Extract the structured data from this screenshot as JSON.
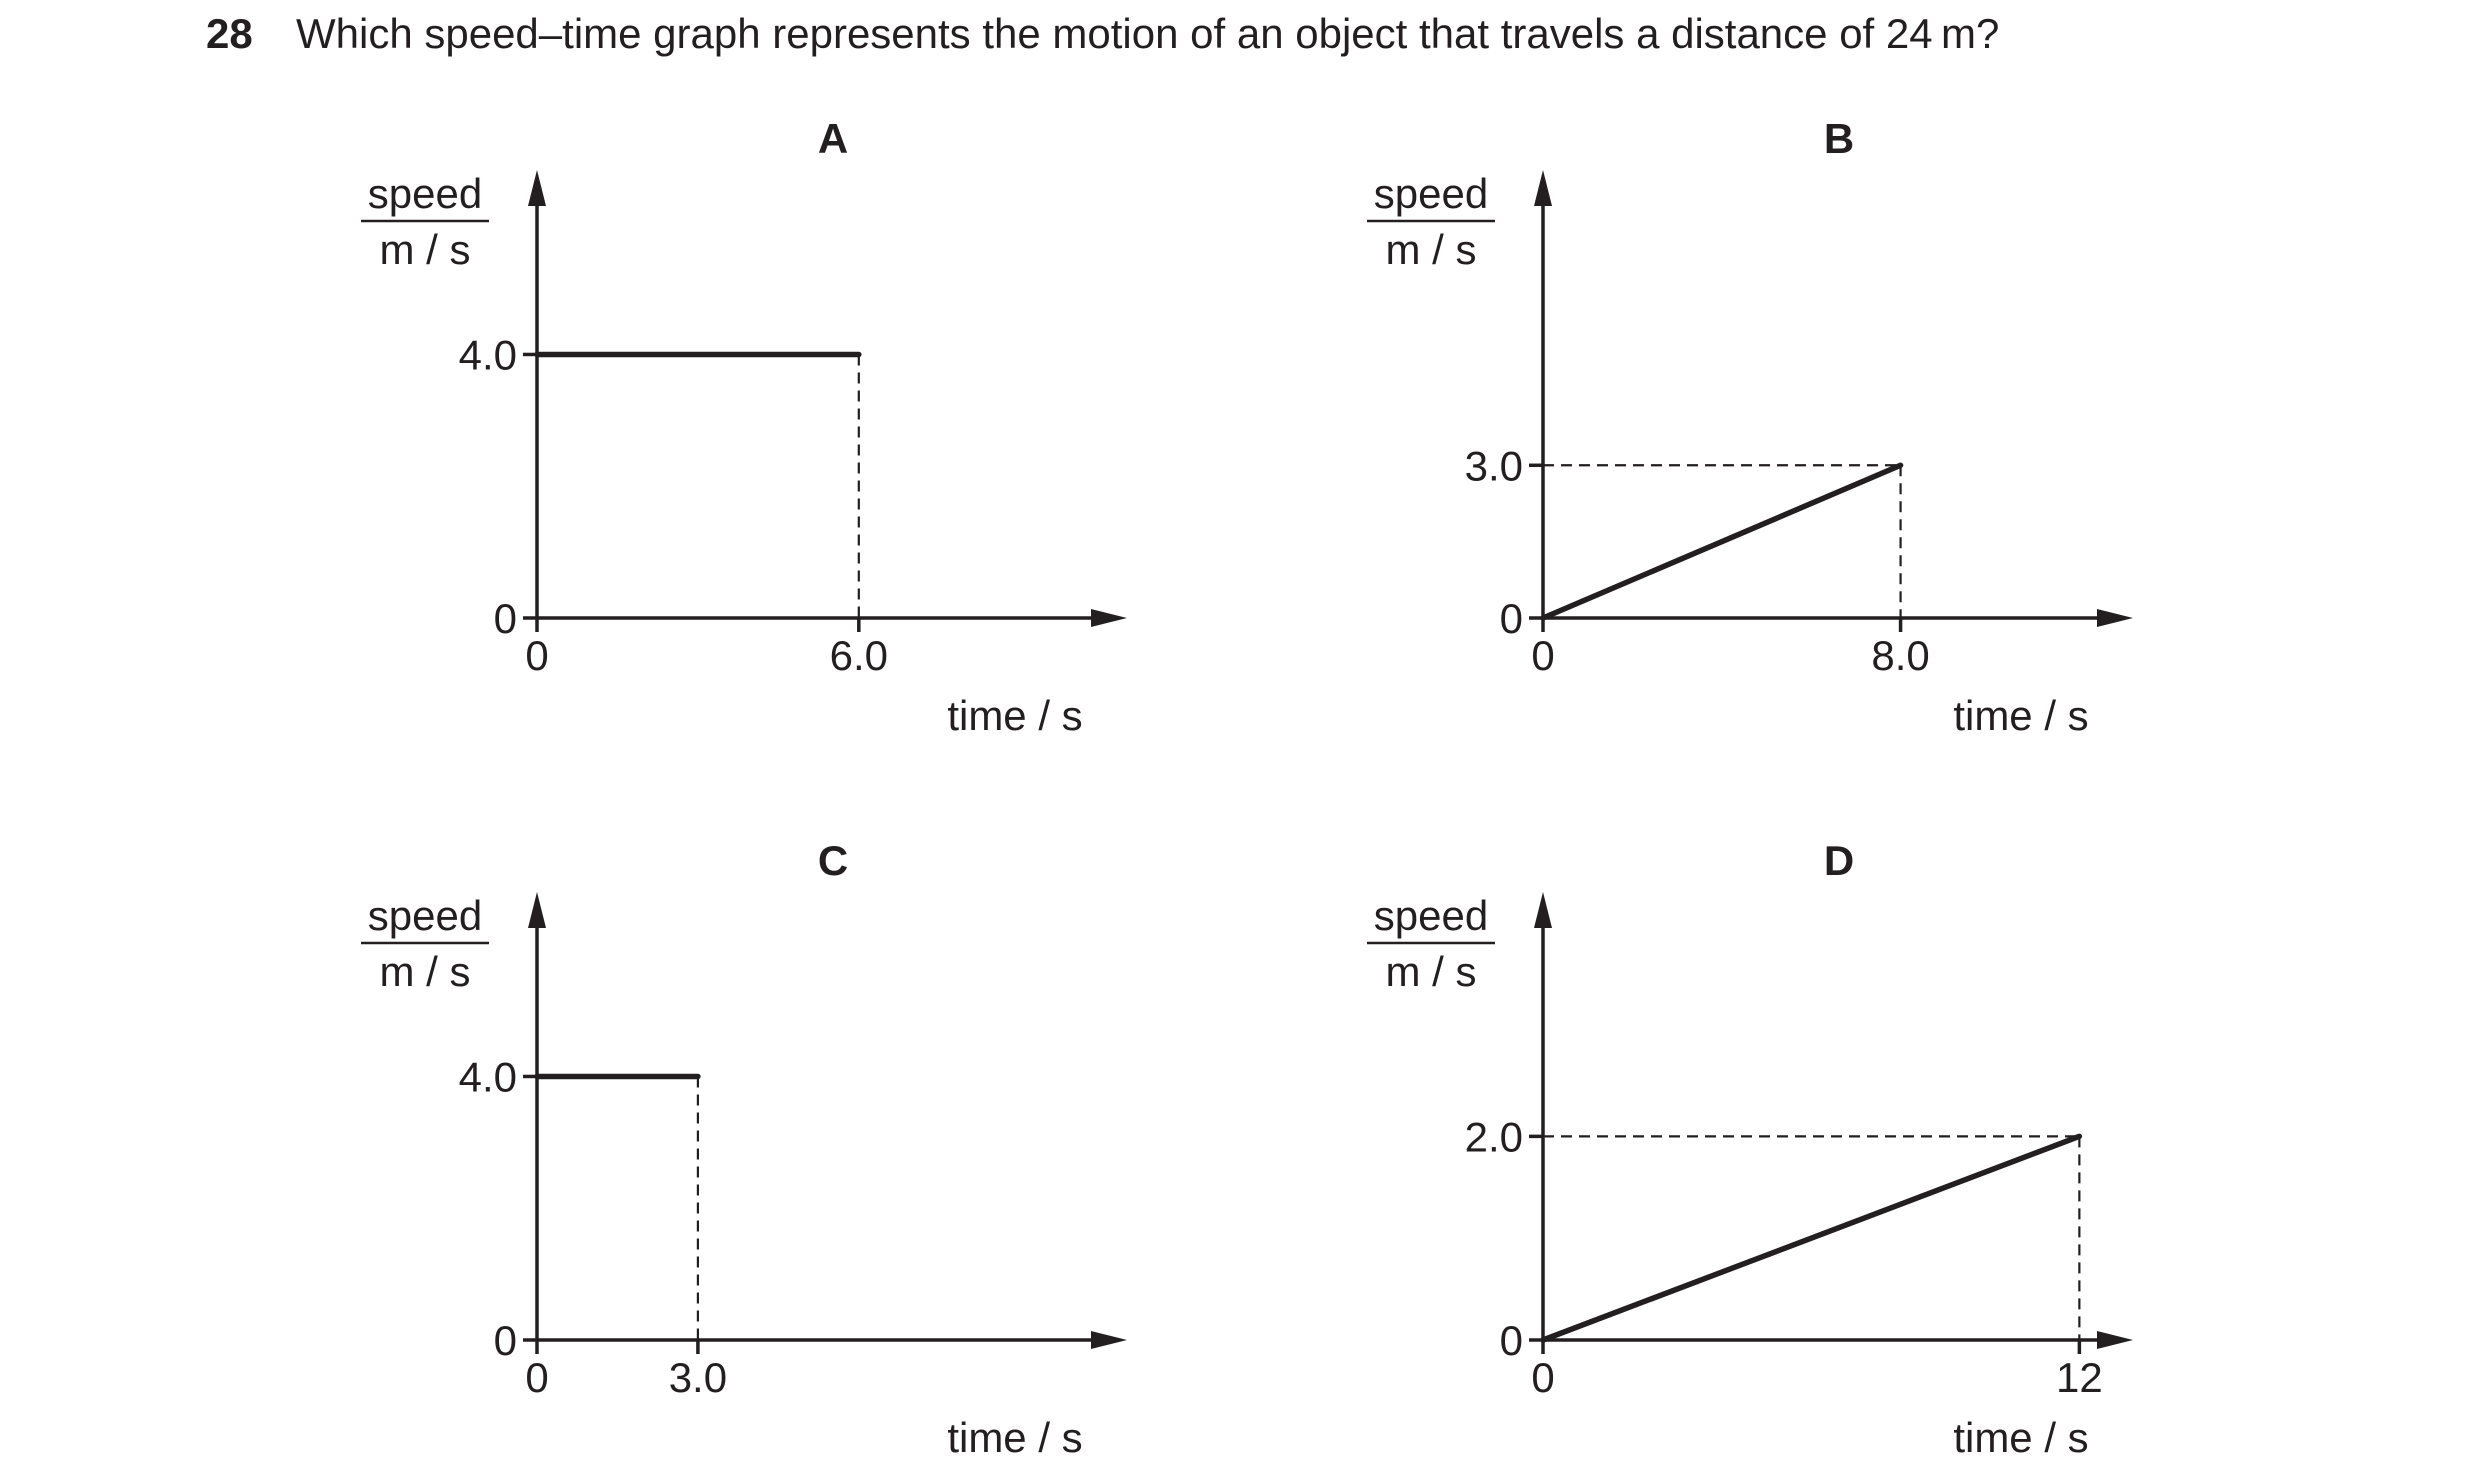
{
  "question": {
    "number": "28",
    "text": "Which speed–time graph represents the motion of an object that travels a distance of 24 m?"
  },
  "chart_data": [
    {
      "option": "A",
      "type": "line",
      "ylabel": "speed",
      "yunit": "m / s",
      "xlabel": "time / s",
      "x": [
        0,
        6.0
      ],
      "y": [
        4.0,
        4.0
      ],
      "x_ticks": [
        "0",
        "6.0"
      ],
      "x_tick_values": [
        0,
        6.0
      ],
      "y_ticks": [
        "0",
        "4.0"
      ],
      "y_tick_values": [
        0,
        4.0
      ],
      "dashed_guides": [
        {
          "from": [
            6.0,
            4.0
          ],
          "to": [
            6.0,
            0
          ]
        }
      ],
      "xlim": [
        0,
        11
      ],
      "ylim": [
        0,
        6.8
      ]
    },
    {
      "option": "B",
      "type": "line",
      "ylabel": "speed",
      "yunit": "m / s",
      "xlabel": "time / s",
      "x": [
        0,
        8.0
      ],
      "y": [
        0,
        3.0
      ],
      "x_ticks": [
        "0",
        "8.0"
      ],
      "x_tick_values": [
        0,
        8.0
      ],
      "y_ticks": [
        "0",
        "3.0"
      ],
      "y_tick_values": [
        0,
        3.0
      ],
      "dashed_guides": [
        {
          "from": [
            0,
            3.0
          ],
          "to": [
            8.0,
            3.0
          ]
        },
        {
          "from": [
            8.0,
            3.0
          ],
          "to": [
            8.0,
            0
          ]
        }
      ],
      "xlim": [
        0,
        13.2
      ],
      "ylim": [
        0,
        8.8
      ]
    },
    {
      "option": "C",
      "type": "line",
      "ylabel": "speed",
      "yunit": "m / s",
      "xlabel": "time / s",
      "x": [
        0,
        3.0
      ],
      "y": [
        4.0,
        4.0
      ],
      "x_ticks": [
        "0",
        "3.0"
      ],
      "x_tick_values": [
        0,
        3.0
      ],
      "y_ticks": [
        "0",
        "4.0"
      ],
      "y_tick_values": [
        0,
        4.0
      ],
      "dashed_guides": [
        {
          "from": [
            3.0,
            4.0
          ],
          "to": [
            3.0,
            0
          ]
        }
      ],
      "xlim": [
        0,
        11
      ],
      "ylim": [
        0,
        6.8
      ]
    },
    {
      "option": "D",
      "type": "line",
      "ylabel": "speed",
      "yunit": "m / s",
      "xlabel": "time / s",
      "x": [
        0,
        12
      ],
      "y": [
        0,
        2.0
      ],
      "x_ticks": [
        "0",
        "12"
      ],
      "x_tick_values": [
        0,
        12
      ],
      "y_ticks": [
        "0",
        "2.0"
      ],
      "y_tick_values": [
        0,
        2.0
      ],
      "dashed_guides": [
        {
          "from": [
            0,
            2.0
          ],
          "to": [
            12,
            2.0
          ]
        },
        {
          "from": [
            12,
            2.0
          ],
          "to": [
            12,
            0
          ]
        }
      ],
      "xlim": [
        0,
        13.2
      ],
      "ylim": [
        0,
        4.4
      ]
    }
  ]
}
